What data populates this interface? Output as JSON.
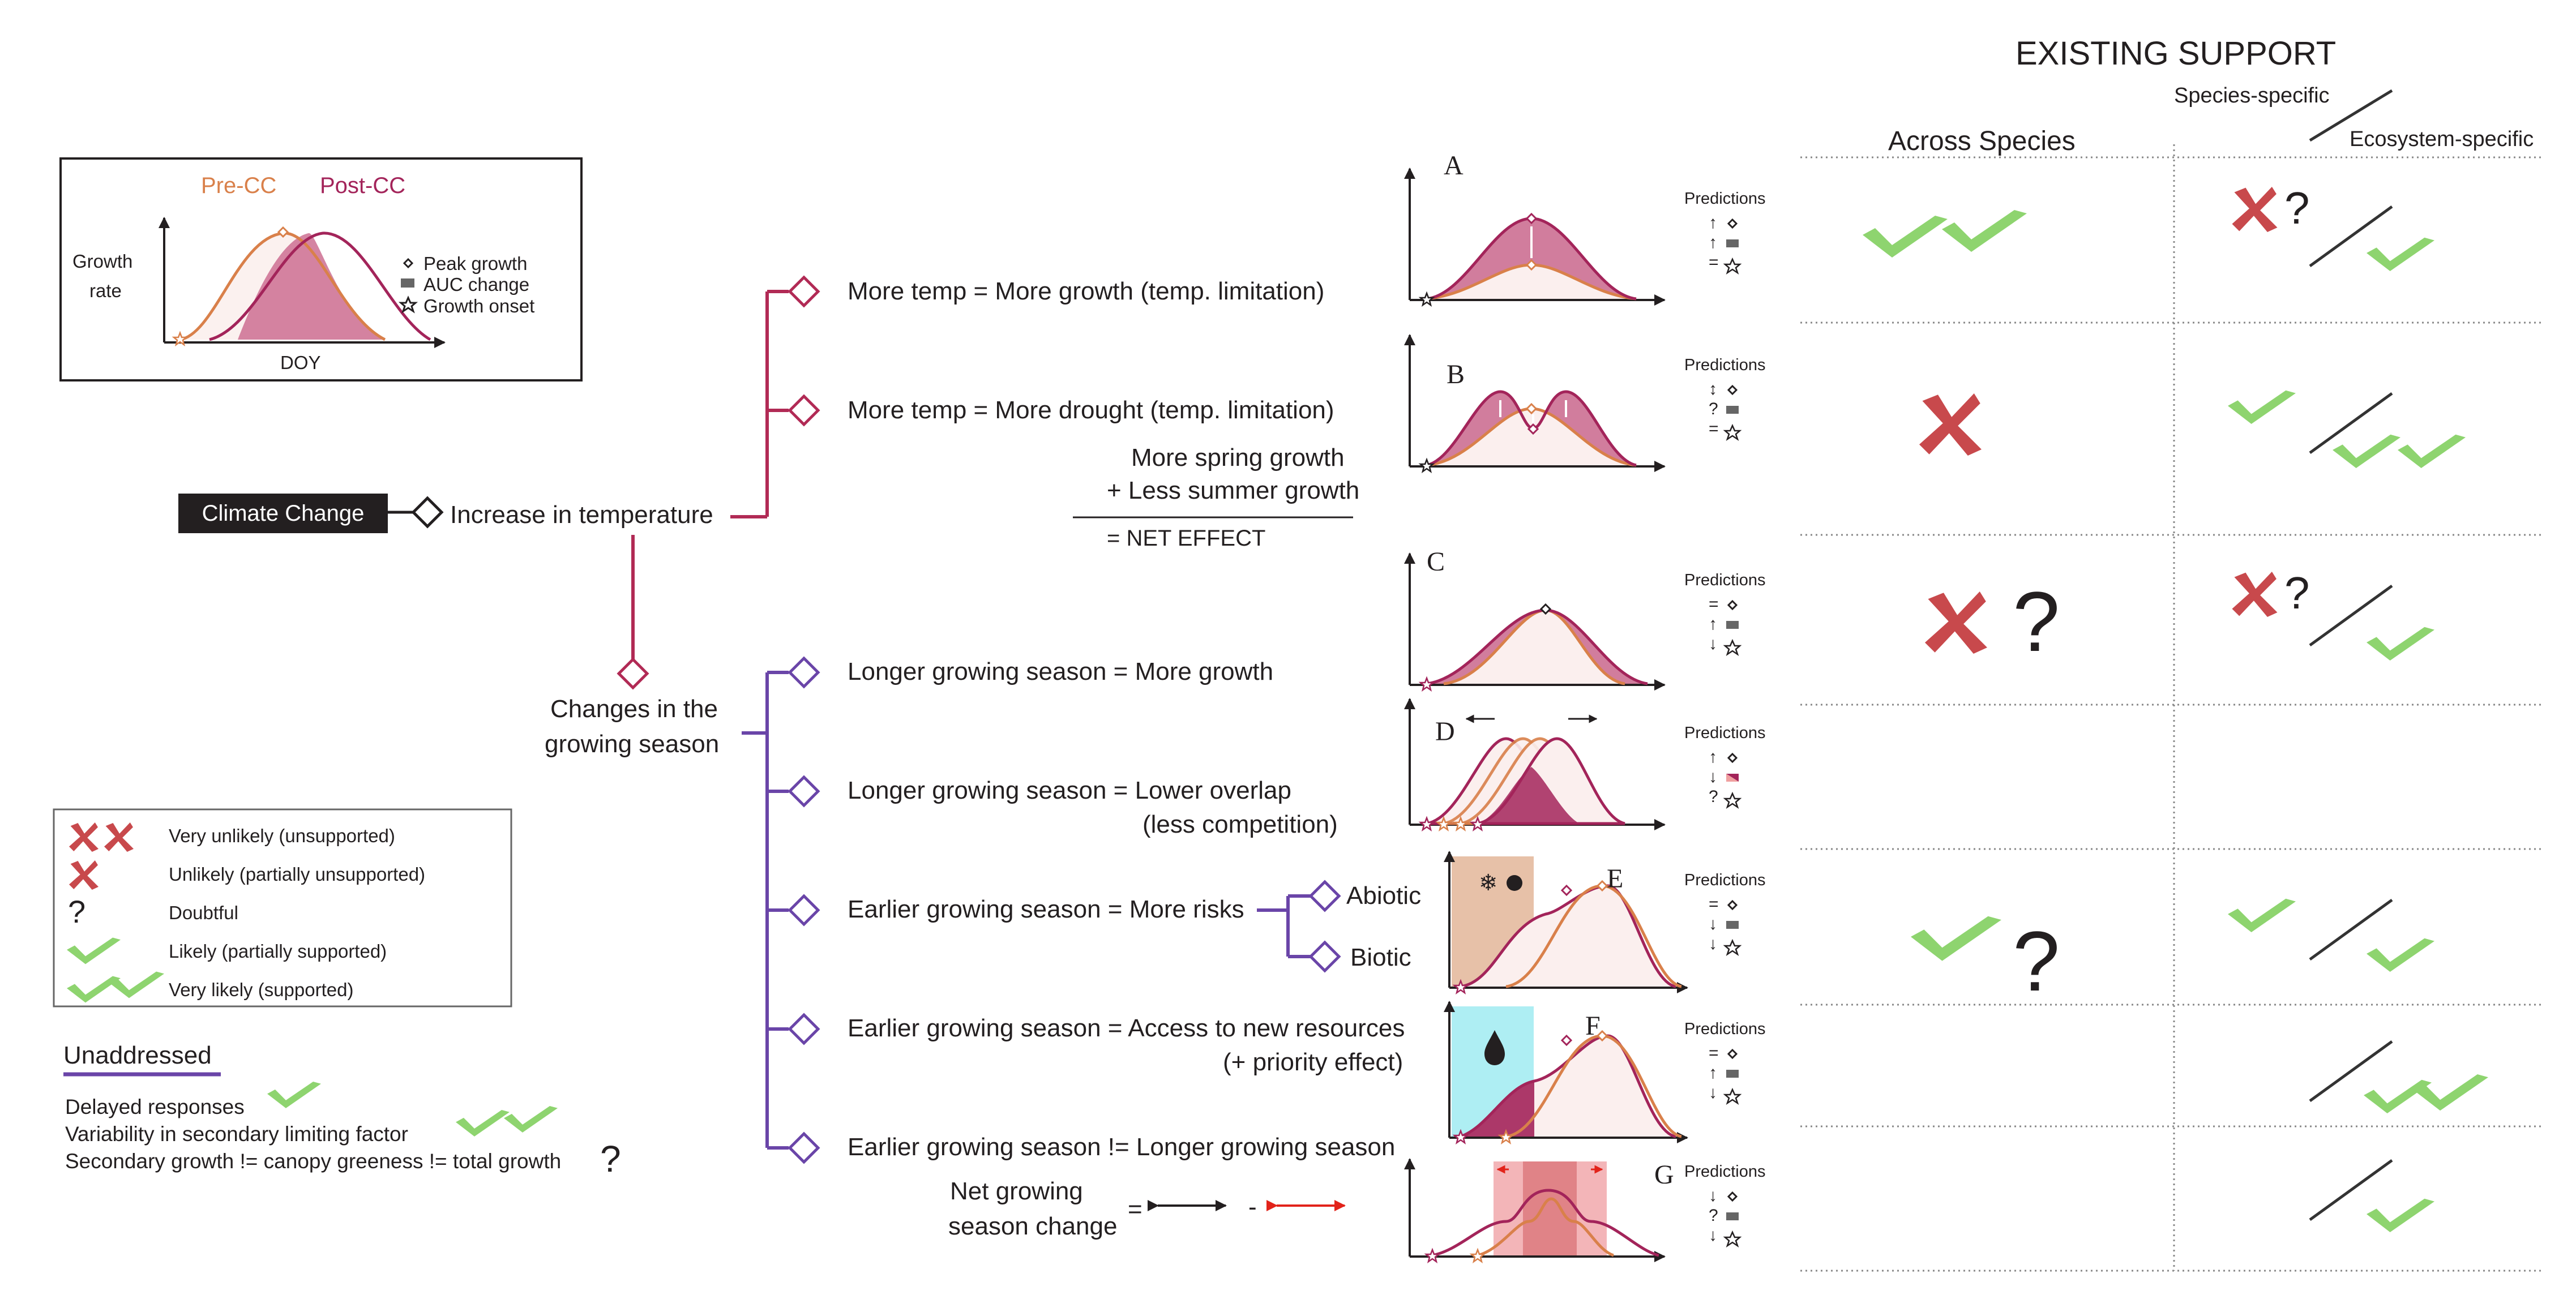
{
  "legend_box": {
    "pre_cc": "Pre-CC",
    "post_cc": "Post-CC",
    "ylabel_line1": "Growth",
    "ylabel_line2": "rate",
    "xlabel": "DOY",
    "key_peak": "Peak growth",
    "key_auc": "AUC change",
    "key_onset": "Growth onset"
  },
  "tree": {
    "root": "Climate Change",
    "temp_node": "Increase in temperature",
    "season_node_line1": "Changes in the",
    "season_node_line2": "growing season",
    "temp_branches": [
      "More temp = More growth (temp. limitation)",
      "More temp = More drought (temp. limitation)"
    ],
    "net_effect_line1": "More spring growth",
    "net_effect_line2": "+ Less summer growth",
    "net_effect_line3": "= NET EFFECT",
    "season_branches": [
      {
        "line1": "Longer growing season = More growth",
        "line2": ""
      },
      {
        "line1": "Longer growing season = Lower overlap",
        "line2": "(less competition)"
      },
      {
        "line1": "Earlier growing season = More risks",
        "line2": ""
      },
      {
        "line1": "Earlier growing season = Access to new resources",
        "line2": "(+ priority effect)"
      },
      {
        "line1": "Earlier growing season != Longer growing season",
        "line2": ""
      }
    ],
    "risk_abiotic": "Abiotic",
    "risk_biotic": "Biotic",
    "net_season_line1": "Net growing",
    "net_season_line2": "season change",
    "net_season_eq": "=",
    "net_season_minus": "-"
  },
  "panels": [
    {
      "letter": "A",
      "predictions": "Predictions",
      "marks": [
        "↑",
        "↑",
        "="
      ]
    },
    {
      "letter": "B",
      "predictions": "Predictions",
      "marks": [
        "↕",
        "?",
        "="
      ]
    },
    {
      "letter": "C",
      "predictions": "Predictions",
      "marks": [
        "=",
        "↑",
        "↓"
      ]
    },
    {
      "letter": "D",
      "predictions": "Predictions",
      "marks": [
        "↑",
        "↓",
        "?"
      ]
    },
    {
      "letter": "E",
      "predictions": "Predictions",
      "marks": [
        "=",
        "↓",
        "↓"
      ]
    },
    {
      "letter": "F",
      "predictions": "Predictions",
      "marks": [
        "=",
        "↑",
        "↓"
      ]
    },
    {
      "letter": "G",
      "predictions": "Predictions",
      "marks": [
        "↓",
        "?",
        "↓"
      ]
    }
  ],
  "support": {
    "title": "EXISTING SUPPORT",
    "col_across": "Across Species",
    "col_species": "Species-specific",
    "col_ecosystem": "Ecosystem-specific",
    "rows": [
      {
        "across": [
          "check",
          "check"
        ],
        "species": [
          "cross",
          "question"
        ],
        "ecosystem": [
          "check"
        ]
      },
      {
        "across": [
          "cross"
        ],
        "species": [
          "check"
        ],
        "ecosystem": [
          "check",
          "check"
        ]
      },
      {
        "across": [
          "cross",
          "question"
        ],
        "species": [
          "cross",
          "question"
        ],
        "ecosystem": [
          "check"
        ]
      },
      {
        "across": [],
        "species": [],
        "ecosystem": []
      },
      {
        "across": [
          "check",
          "question"
        ],
        "species": [
          "check"
        ],
        "ecosystem": [
          "check"
        ]
      },
      {
        "across": [],
        "species": [],
        "ecosystem": [
          "check",
          "check"
        ]
      },
      {
        "across": [],
        "species": [],
        "ecosystem": [
          "check"
        ]
      }
    ]
  },
  "symbol_legend": [
    {
      "label": "Very unlikely (unsupported)",
      "symbols": [
        "cross",
        "cross"
      ]
    },
    {
      "label": "Unlikely (partially unsupported)",
      "symbols": [
        "cross"
      ]
    },
    {
      "label": "Doubtful",
      "symbols": [
        "question"
      ]
    },
    {
      "label": "Likely (partially supported)",
      "symbols": [
        "check"
      ]
    },
    {
      "label": "Very likely (supported)",
      "symbols": [
        "check",
        "check"
      ]
    }
  ],
  "unaddressed": {
    "title": "Unaddressed",
    "items": [
      {
        "label": "Delayed responses",
        "symbols": [
          "check"
        ]
      },
      {
        "label": "Variability in secondary limiting factor",
        "symbols": [
          "check",
          "check"
        ]
      },
      {
        "label": "Secondary growth != canopy greeness != total growth",
        "symbols": [
          "question"
        ]
      }
    ]
  },
  "colors": {
    "pre": "#d9804a",
    "post": "#a3245a",
    "post_fill": "#cc6f92",
    "temp_branch": "#b12a55",
    "season_branch": "#6a45a8",
    "check": "#8ed46f",
    "cross": "#c8494c",
    "dark": "#231f20"
  }
}
